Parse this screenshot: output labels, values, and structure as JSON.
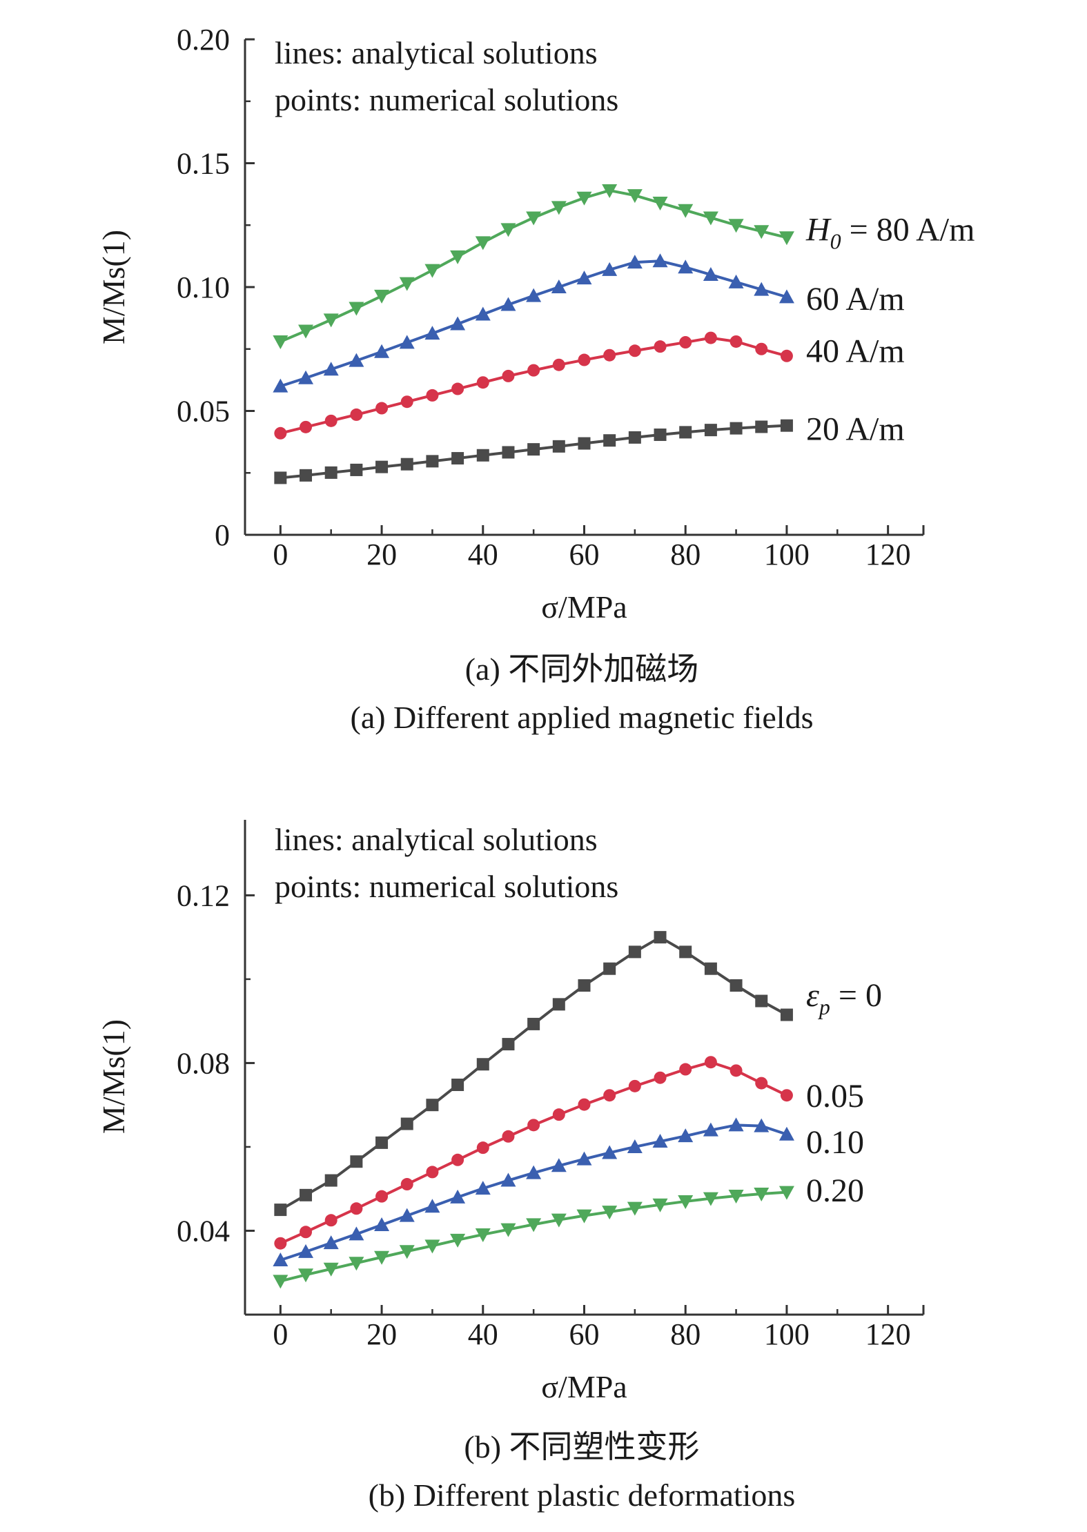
{
  "chart_data": [
    {
      "type": "line",
      "title": "",
      "xlabel": "σ/MPa",
      "ylabel": "M/Ms(1)",
      "xlim": [
        -7,
        127
      ],
      "ylim": [
        0,
        0.2
      ],
      "xticks": [
        "0",
        "20",
        "40",
        "60",
        "80",
        "100",
        "120"
      ],
      "yticks": [
        "0",
        "0.05",
        "0.10",
        "0.15",
        "0.20"
      ],
      "grid": false,
      "note_lines": [
        "lines: analytical solutions",
        "points: numerical solutions"
      ],
      "caption_cn": "(a) 不同外加磁场",
      "caption_en": "(a) Different applied magnetic fields",
      "x": [
        0,
        5,
        10,
        15,
        20,
        25,
        30,
        35,
        40,
        45,
        50,
        55,
        60,
        65,
        70,
        75,
        80,
        85,
        90,
        95,
        100
      ],
      "series": [
        {
          "label": "20 A/m",
          "color": "#4a4a4a",
          "marker": "square",
          "values": [
            0.023,
            0.024,
            0.0251,
            0.0262,
            0.0274,
            0.0285,
            0.0297,
            0.0309,
            0.0321,
            0.0333,
            0.0345,
            0.0357,
            0.0369,
            0.0381,
            0.0393,
            0.0404,
            0.0414,
            0.0423,
            0.043,
            0.0436,
            0.0441
          ]
        },
        {
          "label": "40 A/m",
          "color": "#d6344a",
          "marker": "circle",
          "values": [
            0.041,
            0.0435,
            0.046,
            0.0485,
            0.0511,
            0.0537,
            0.0563,
            0.0589,
            0.0615,
            0.0641,
            0.0664,
            0.0686,
            0.0706,
            0.0725,
            0.0743,
            0.076,
            0.0777,
            0.0795,
            0.078,
            0.075,
            0.0722
          ]
        },
        {
          "label": "60 A/m",
          "color": "#3a5fb0",
          "marker": "triangle-up",
          "values": [
            0.06,
            0.0633,
            0.0668,
            0.0703,
            0.0739,
            0.0776,
            0.0813,
            0.0851,
            0.089,
            0.0929,
            0.0965,
            0.1,
            0.1036,
            0.107,
            0.11,
            0.1105,
            0.108,
            0.105,
            0.102,
            0.099,
            0.096
          ]
        },
        {
          "label": "H0 = 80 A/m",
          "label_main": "H",
          "label_sub": "0",
          "label_rest": " = 80 A/m",
          "color": "#4fa85a",
          "marker": "triangle-down",
          "values": [
            0.078,
            0.0823,
            0.0868,
            0.0915,
            0.0964,
            0.1015,
            0.1068,
            0.1123,
            0.118,
            0.1233,
            0.128,
            0.1322,
            0.136,
            0.139,
            0.137,
            0.134,
            0.131,
            0.128,
            0.125,
            0.1225,
            0.12
          ]
        }
      ],
      "series_labels": [
        {
          "label_series": 0,
          "y": 0.0425
        },
        {
          "label_series": 1,
          "y": 0.074
        },
        {
          "label_series": 2,
          "y": 0.095
        },
        {
          "label_series": 3,
          "y": 0.123
        }
      ]
    },
    {
      "type": "line",
      "title": "",
      "xlabel": "σ/MPa",
      "ylabel": "M/Ms(1)",
      "xlim": [
        -7,
        127
      ],
      "ylim": [
        0.02,
        0.138
      ],
      "xticks": [
        "0",
        "20",
        "40",
        "60",
        "80",
        "100",
        "120"
      ],
      "yticks": [
        "0.04",
        "0.08",
        "0.12"
      ],
      "grid": false,
      "note_lines": [
        "lines: analytical solutions",
        "points: numerical solutions"
      ],
      "caption_cn": "(b) 不同塑性变形",
      "caption_en": "(b) Different plastic deformations",
      "x": [
        0,
        5,
        10,
        15,
        20,
        25,
        30,
        35,
        40,
        45,
        50,
        55,
        60,
        65,
        70,
        75,
        80,
        85,
        90,
        95,
        100
      ],
      "series": [
        {
          "label": "εp = 0",
          "label_main": "ε",
          "label_sub": "p",
          "label_rest": " = 0",
          "color": "#4a4a4a",
          "marker": "square",
          "values": [
            0.045,
            0.0485,
            0.052,
            0.0565,
            0.061,
            0.0655,
            0.07,
            0.0748,
            0.0797,
            0.0845,
            0.0893,
            0.094,
            0.0985,
            0.1025,
            0.1065,
            0.11,
            0.1065,
            0.1025,
            0.0985,
            0.0948,
            0.0915
          ]
        },
        {
          "label": "0.05",
          "color": "#d6344a",
          "marker": "circle",
          "values": [
            0.037,
            0.0397,
            0.0425,
            0.0453,
            0.0482,
            0.0511,
            0.054,
            0.0569,
            0.0598,
            0.0625,
            0.0652,
            0.0677,
            0.0701,
            0.0723,
            0.0745,
            0.0765,
            0.0785,
            0.0802,
            0.0782,
            0.0752,
            0.0723
          ]
        },
        {
          "label": "0.10",
          "color": "#3a5fb0",
          "marker": "triangle-up",
          "values": [
            0.033,
            0.035,
            0.0371,
            0.0392,
            0.0414,
            0.0436,
            0.0458,
            0.048,
            0.0501,
            0.052,
            0.0538,
            0.0555,
            0.0571,
            0.0586,
            0.06,
            0.0613,
            0.0626,
            0.064,
            0.0652,
            0.065,
            0.063
          ]
        },
        {
          "label": "0.20",
          "color": "#4fa85a",
          "marker": "triangle-down",
          "values": [
            0.028,
            0.0295,
            0.0309,
            0.0323,
            0.0337,
            0.0351,
            0.0364,
            0.0378,
            0.0391,
            0.0403,
            0.0415,
            0.0426,
            0.0436,
            0.0445,
            0.0454,
            0.0462,
            0.047,
            0.0477,
            0.0483,
            0.0488,
            0.0492
          ]
        }
      ],
      "series_labels": [
        {
          "label_series": 0,
          "y": 0.096
        },
        {
          "label_series": 1,
          "y": 0.072
        },
        {
          "label_series": 2,
          "y": 0.061
        },
        {
          "label_series": 3,
          "y": 0.0495
        }
      ]
    }
  ]
}
